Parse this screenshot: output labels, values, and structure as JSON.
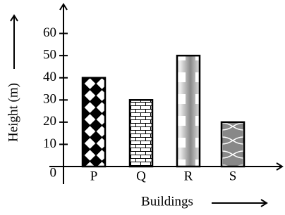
{
  "chart_data": {
    "type": "bar",
    "x_label": "Buildings",
    "y_label": "Height (m)",
    "categories": [
      "P",
      "Q",
      "R",
      "S"
    ],
    "values": [
      40,
      30,
      50,
      20
    ],
    "ylim": [
      0,
      70
    ],
    "yticks": [
      0,
      10,
      20,
      30,
      40,
      50,
      60
    ]
  }
}
